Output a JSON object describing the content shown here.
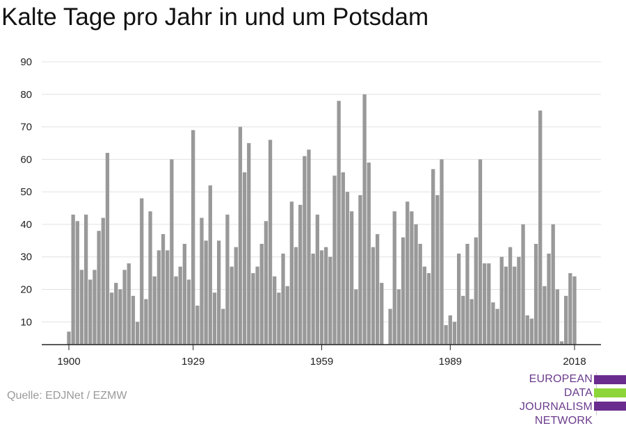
{
  "title": "Kalte Tage pro Jahr in und um Potsdam",
  "source": "Quelle: EDJNet / EZMW",
  "logo": {
    "lines": [
      "EUROPEAN",
      "DATA JOURNALISM",
      "NETWORK"
    ],
    "colors": {
      "purple": "#6a2c8e",
      "green": "#8dd63a"
    }
  },
  "colors": {
    "bar": "#999999",
    "grid": "#e0e0e0",
    "axis": "#222222",
    "tick_text": "#222222"
  },
  "chart_data": {
    "type": "bar",
    "title": "Kalte Tage pro Jahr in und um Potsdam",
    "xlabel": "",
    "ylabel": "",
    "x_start": 1900,
    "x_end": 2018,
    "x_ticks": [
      1900,
      1929,
      1959,
      1989,
      2018
    ],
    "y_ticks": [
      10,
      20,
      30,
      40,
      50,
      60,
      70,
      80,
      90
    ],
    "ylim": [
      3,
      90
    ],
    "grid": true,
    "values": [
      7,
      43,
      41,
      26,
      43,
      23,
      26,
      38,
      42,
      62,
      19,
      22,
      20,
      26,
      28,
      18,
      10,
      48,
      17,
      44,
      24,
      32,
      37,
      32,
      60,
      24,
      27,
      34,
      23,
      69,
      15,
      42,
      35,
      52,
      19,
      35,
      14,
      43,
      27,
      33,
      70,
      56,
      65,
      25,
      27,
      34,
      41,
      66,
      24,
      19,
      31,
      21,
      47,
      33,
      46,
      61,
      63,
      31,
      43,
      32,
      33,
      30,
      55,
      78,
      56,
      50,
      44,
      20,
      49,
      80,
      59,
      33,
      37,
      22,
      3,
      14,
      44,
      20,
      36,
      47,
      44,
      40,
      34,
      27,
      25,
      57,
      49,
      60,
      9,
      12,
      10,
      31,
      18,
      34,
      17,
      36,
      60,
      28,
      28,
      16,
      14,
      30,
      27,
      33,
      27,
      30,
      40,
      12,
      11,
      34,
      75,
      21,
      31,
      40,
      20,
      4,
      18,
      25,
      24
    ]
  }
}
